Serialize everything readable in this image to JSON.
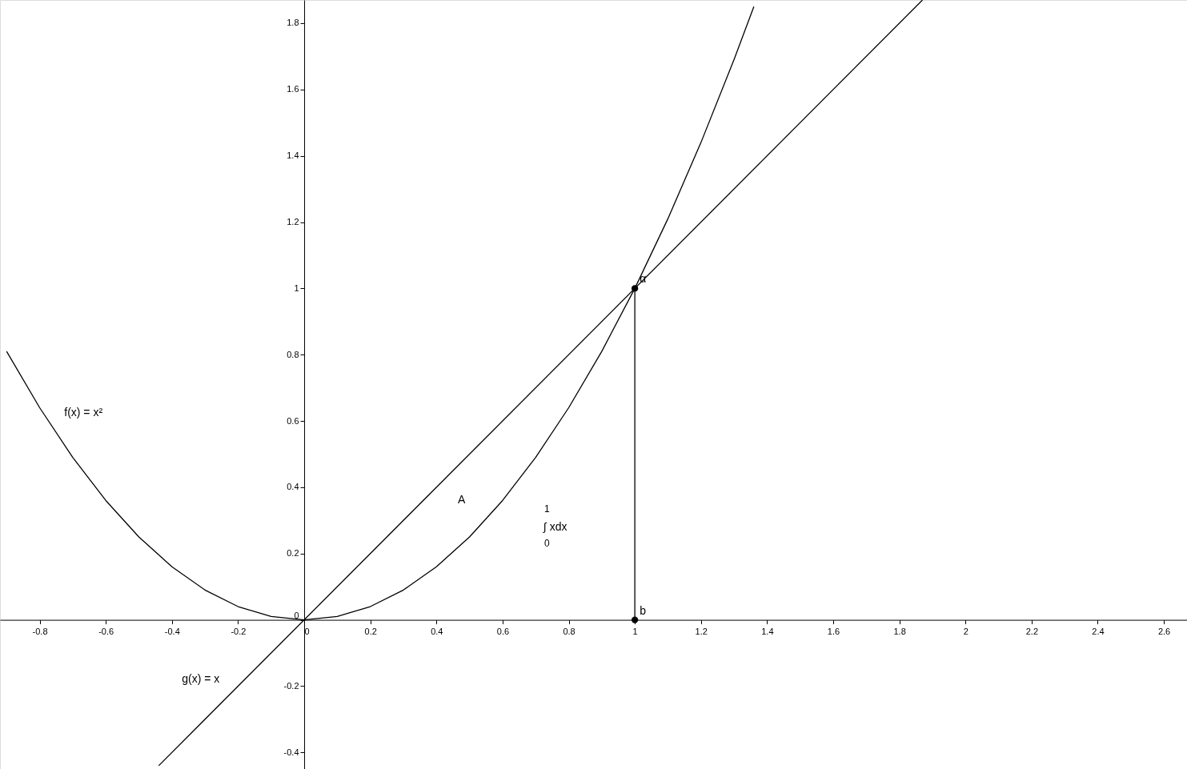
{
  "chart_data": {
    "type": "line",
    "xlim": [
      -0.92,
      2.67
    ],
    "ylim": [
      -0.45,
      1.87
    ],
    "xticks": [
      -0.8,
      -0.6,
      -0.4,
      -0.2,
      0,
      0.2,
      0.4,
      0.6,
      0.8,
      1,
      1.2,
      1.4,
      1.6,
      1.8,
      2,
      2.2,
      2.4,
      2.6
    ],
    "yticks": [
      -0.4,
      -0.2,
      0,
      0.2,
      0.4,
      0.6,
      0.8,
      1,
      1.2,
      1.4,
      1.6,
      1.8
    ],
    "grid": false,
    "line_style": "solid",
    "series": [
      {
        "name": "f(x) = x²",
        "color": "#000000",
        "x": [
          -0.9,
          -0.8,
          -0.7,
          -0.6,
          -0.5,
          -0.4,
          -0.3,
          -0.2,
          -0.1,
          0,
          0.1,
          0.2,
          0.3,
          0.4,
          0.5,
          0.6,
          0.7,
          0.8,
          0.9,
          1,
          1.1,
          1.2,
          1.3,
          1.36
        ],
        "values": [
          0.81,
          0.64,
          0.49,
          0.36,
          0.25,
          0.16,
          0.09,
          0.04,
          0.01,
          0,
          0.01,
          0.04,
          0.09,
          0.16,
          0.25,
          0.36,
          0.49,
          0.64,
          0.81,
          1,
          1.21,
          1.44,
          1.69,
          1.85
        ]
      },
      {
        "name": "g(x) = x",
        "color": "#000000",
        "x": [
          -0.44,
          1.87
        ],
        "values": [
          -0.44,
          1.87
        ]
      },
      {
        "color": "#000000",
        "x": [
          1,
          1
        ],
        "values": [
          0,
          1
        ]
      },
      {
        "type": "scatter",
        "color": "#000000",
        "marker": "circle",
        "x": [
          1,
          1
        ],
        "values": [
          1,
          0
        ],
        "value_labels": [
          "α",
          "b"
        ]
      }
    ],
    "annotations": [
      "A",
      "1",
      "∫ xdx",
      "0"
    ]
  }
}
